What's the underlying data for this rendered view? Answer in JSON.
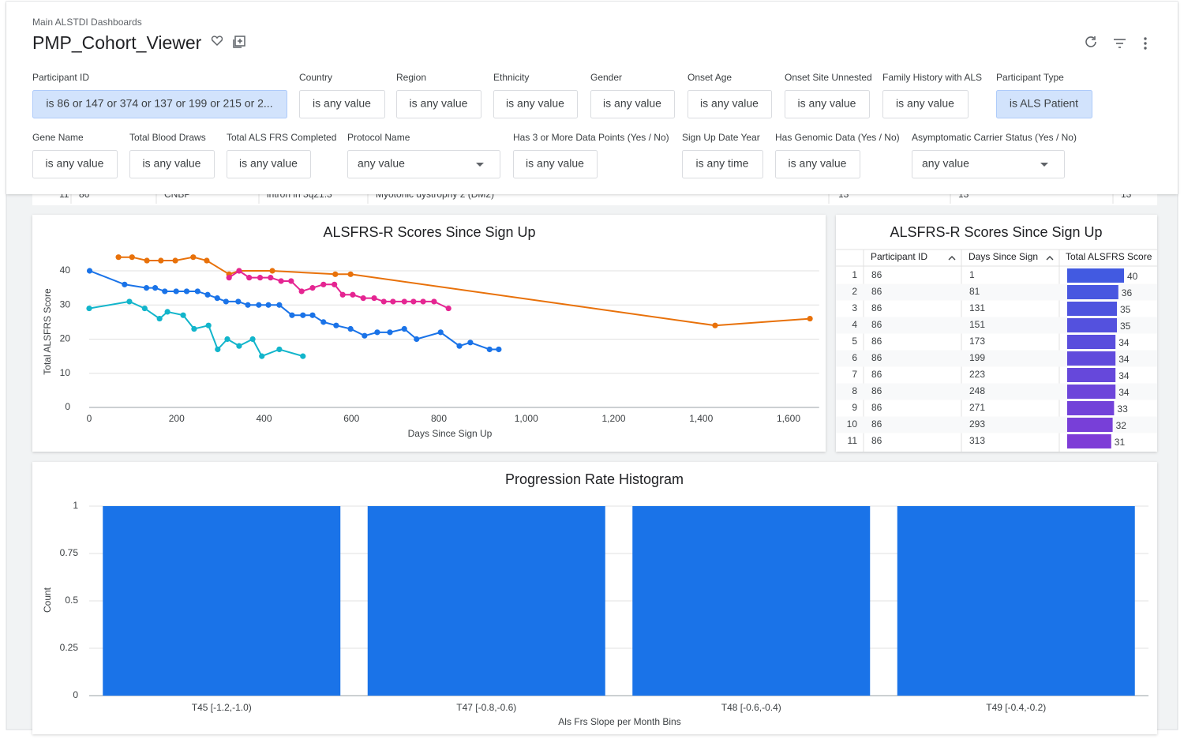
{
  "header": {
    "breadcrumb": "Main ALSTDI Dashboards",
    "title": "PMP_Cohort_Viewer"
  },
  "filters": [
    [
      {
        "label": "Participant ID",
        "value": "is 86 or 147 or 374 or 137 or 199 or 215 or 2...",
        "selected": true
      },
      {
        "label": "Country",
        "value": "is any value"
      },
      {
        "label": "Region",
        "value": "is any value"
      },
      {
        "label": "Ethnicity",
        "value": "is any value"
      },
      {
        "label": "Gender",
        "value": "is any value"
      },
      {
        "label": "Onset Age",
        "value": "is any value"
      },
      {
        "label": "Onset Site Unnested",
        "value": "is any value"
      },
      {
        "label": "Family History with ALS",
        "value": "is any value"
      },
      {
        "label": "Participant Type",
        "value": "is ALS Patient",
        "selected": true
      }
    ],
    [
      {
        "label": "Gene Name",
        "value": "is any value"
      },
      {
        "label": "Total Blood Draws",
        "value": "is any value"
      },
      {
        "label": "Total ALS FRS Completed",
        "value": "is any value"
      },
      {
        "label": "Protocol Name",
        "value": "any value",
        "dropdown": true
      },
      {
        "label": "Has 3 or More Data Points (Yes / No)",
        "value": "is any value"
      },
      {
        "label": "Sign Up Date Year",
        "value": "is any time"
      },
      {
        "label": "Has Genomic Data (Yes / No)",
        "value": "is any value"
      },
      {
        "label": "Asymptomatic Carrier Status (Yes / No)",
        "value": "any value",
        "dropdown": true
      }
    ]
  ],
  "background_row": [
    "11",
    "86",
    "CNBP",
    "intron in 3q21.3",
    "Myotonic dystrophy 2 (DM2)",
    "13",
    "13",
    "13"
  ],
  "chart_data": [
    {
      "type": "line",
      "title": "ALSFRS-R Scores Since Sign Up",
      "x_label": "Days Since Sign Up",
      "y_label": "Total ALSFRS Score",
      "xlim": [
        0,
        1670
      ],
      "ylim": [
        0,
        45
      ],
      "xticks": [
        0,
        200,
        400,
        600,
        800,
        {
          "value": 1000,
          "label": "1,000"
        },
        {
          "value": 1200,
          "label": "1,200"
        },
        {
          "value": 1400,
          "label": "1,400"
        },
        {
          "value": 1600,
          "label": "1,600"
        }
      ],
      "yticks": [
        0,
        10,
        20,
        30,
        40
      ],
      "grid": true,
      "series": [
        {
          "color": "#1a73e8",
          "x": [
            1,
            81,
            131,
            151,
            173,
            199,
            223,
            248,
            271,
            293,
            313,
            341,
            363,
            388,
            410,
            435,
            464,
            489,
            511,
            536,
            565,
            598,
            630,
            659,
            688,
            721,
            749,
            804,
            847,
            872,
            916,
            937
          ],
          "values": [
            40,
            36,
            35,
            35,
            34,
            34,
            34,
            34,
            33,
            32,
            31,
            31,
            30,
            30,
            30,
            30,
            27,
            27,
            27,
            25,
            24,
            23,
            21,
            22,
            22,
            23,
            20,
            22,
            18,
            19,
            17,
            17
          ]
        },
        {
          "color": "#e8710a",
          "x": [
            67,
            98,
            132,
            164,
            197,
            238,
            269,
            320,
            343,
            419,
            563,
            598,
            1432,
            1649
          ],
          "values": [
            44,
            44,
            43,
            43,
            43,
            44,
            43,
            39,
            40,
            40,
            39,
            39,
            24,
            26
          ]
        },
        {
          "color": "#e52592",
          "x": [
            320,
            343,
            366,
            391,
            415,
            439,
            462,
            486,
            511,
            536,
            561,
            580,
            603,
            627,
            652,
            674,
            695,
            721,
            742,
            764,
            789,
            822
          ],
          "values": [
            38,
            40,
            38,
            38,
            38,
            37,
            37,
            34,
            35,
            36,
            36,
            33,
            33,
            32,
            32,
            31,
            31,
            31,
            31,
            31,
            31,
            29
          ]
        },
        {
          "color": "#12b5cb",
          "x": [
            0,
            92,
            127,
            161,
            179,
            215,
            240,
            273,
            294,
            316,
            343,
            374,
            395,
            435,
            489
          ],
          "values": [
            29,
            31,
            29,
            26,
            28,
            27,
            23,
            24,
            17,
            20,
            18,
            20,
            15,
            17,
            15
          ]
        }
      ]
    },
    {
      "type": "bar",
      "title": "Progression Rate Histogram",
      "x_label": "Als Frs Slope per Month Bins",
      "y_label": "Count",
      "categories": [
        "T45 [-1.2,-1.0)",
        "T47 [-0.8,-0.6)",
        "T48 [-0.6,-0.4)",
        "T49 [-0.4,-0.2)"
      ],
      "values": [
        1,
        1,
        1,
        1
      ],
      "color": "#1a73e8",
      "ylim": [
        0,
        1
      ],
      "yticks": [
        0,
        0.25,
        0.5,
        0.75,
        1
      ],
      "grid": true
    }
  ],
  "table": {
    "title": "ALSFRS-R Scores Since Sign Up",
    "columns": [
      "Participant ID",
      "Days Since Sign Up",
      "Total ALSFRS Score"
    ],
    "bar_max": 40,
    "rows": [
      [
        1,
        86,
        1,
        40
      ],
      [
        2,
        86,
        81,
        36
      ],
      [
        3,
        86,
        131,
        35
      ],
      [
        4,
        86,
        151,
        35
      ],
      [
        5,
        86,
        173,
        34
      ],
      [
        6,
        86,
        199,
        34
      ],
      [
        7,
        86,
        223,
        34
      ],
      [
        8,
        86,
        248,
        34
      ],
      [
        9,
        86,
        271,
        33
      ],
      [
        10,
        86,
        293,
        32
      ],
      [
        11,
        86,
        313,
        31
      ]
    ]
  }
}
